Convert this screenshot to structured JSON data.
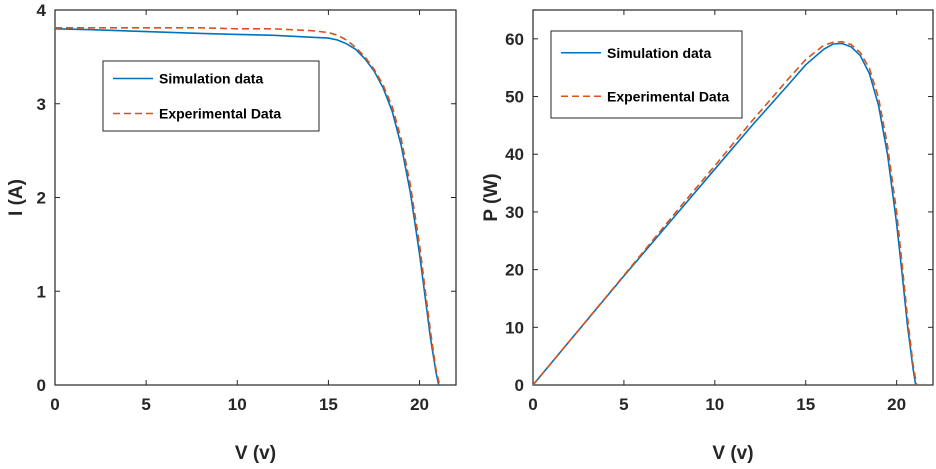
{
  "chart_data": [
    {
      "type": "line",
      "title": "",
      "xlabel": "V (v)",
      "ylabel": "I (A)",
      "xlim": [
        0,
        22
      ],
      "ylim": [
        0,
        4
      ],
      "xticks": [
        0,
        5,
        10,
        15,
        20
      ],
      "yticks": [
        0,
        1,
        2,
        3,
        4
      ],
      "grid": false,
      "legend_position": "upper-left-inside",
      "series": [
        {
          "name": "Simulation data",
          "color": "#0072BD",
          "style": "solid",
          "x": [
            0,
            2,
            5,
            8,
            10,
            12,
            14,
            15,
            15.5,
            16,
            16.5,
            17,
            17.5,
            18,
            18.5,
            19,
            19.5,
            20,
            20.3,
            20.6,
            20.9,
            21.05
          ],
          "y": [
            3.8,
            3.79,
            3.77,
            3.75,
            3.74,
            3.73,
            3.71,
            3.7,
            3.68,
            3.64,
            3.58,
            3.48,
            3.35,
            3.17,
            2.92,
            2.55,
            2.05,
            1.4,
            0.95,
            0.5,
            0.14,
            0
          ]
        },
        {
          "name": "Experimental Data",
          "color": "#D95319",
          "style": "dashed",
          "x": [
            0,
            2,
            5,
            8,
            10,
            12,
            14,
            15,
            15.5,
            16,
            16.5,
            17,
            17.5,
            18,
            18.5,
            19,
            19.5,
            20,
            20.3,
            20.6,
            20.9,
            21.1
          ],
          "y": [
            3.81,
            3.81,
            3.81,
            3.81,
            3.8,
            3.8,
            3.78,
            3.76,
            3.73,
            3.68,
            3.6,
            3.5,
            3.37,
            3.2,
            2.97,
            2.62,
            2.13,
            1.5,
            1.03,
            0.57,
            0.17,
            0
          ]
        }
      ]
    },
    {
      "type": "line",
      "title": "",
      "xlabel": "V (v)",
      "ylabel": "P (W)",
      "xlim": [
        0,
        22
      ],
      "ylim": [
        0,
        65
      ],
      "xticks": [
        0,
        5,
        10,
        15,
        20
      ],
      "yticks": [
        0,
        10,
        20,
        30,
        40,
        50,
        60
      ],
      "grid": false,
      "legend_position": "upper-left-inside",
      "series": [
        {
          "name": "Simulation data",
          "color": "#0072BD",
          "style": "solid",
          "x": [
            0,
            2,
            5,
            8,
            10,
            12,
            14,
            15,
            16,
            16.5,
            17,
            17.5,
            18,
            18.5,
            19,
            19.5,
            20,
            20.3,
            20.6,
            20.9,
            21.05
          ],
          "y": [
            0,
            7.6,
            18.9,
            30.0,
            37.4,
            44.8,
            51.9,
            55.5,
            58.2,
            59.1,
            59.2,
            58.6,
            57.1,
            54.0,
            48.5,
            40.0,
            28.0,
            19.3,
            10.3,
            2.9,
            0
          ]
        },
        {
          "name": "Experimental Data",
          "color": "#D95319",
          "style": "dashed",
          "x": [
            0,
            2,
            5,
            8,
            10,
            12,
            14,
            15,
            16,
            16.5,
            17,
            17.5,
            18,
            18.5,
            19,
            19.5,
            20,
            20.3,
            20.6,
            20.9,
            21.1
          ],
          "y": [
            0,
            7.6,
            19.0,
            30.5,
            38.0,
            45.6,
            52.9,
            56.4,
            58.9,
            59.4,
            59.5,
            59.0,
            57.6,
            54.9,
            49.8,
            41.5,
            30.0,
            20.9,
            11.7,
            3.6,
            0
          ]
        }
      ]
    }
  ]
}
